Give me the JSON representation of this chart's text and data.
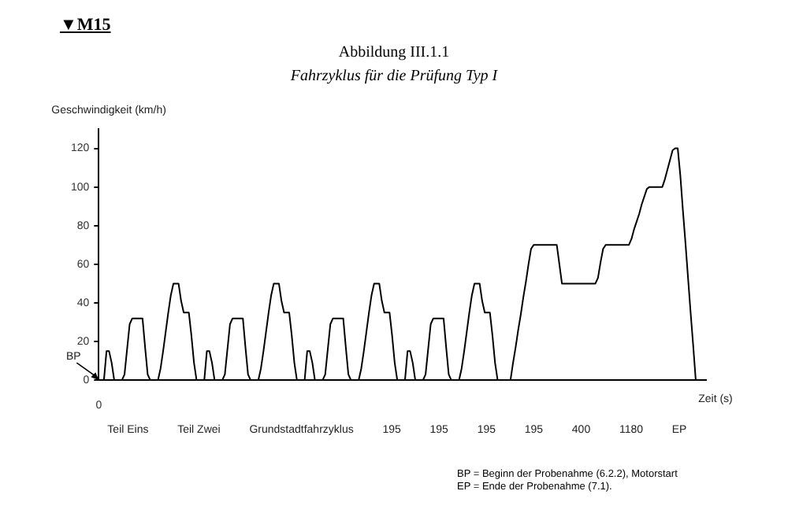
{
  "chart_data": {
    "type": "line",
    "title": "Abbildung III.1.1",
    "subtitle": "Fahrzyklus für die Prüfung Typ I",
    "ylabel": "Geschwindigkeit (km/h)",
    "xlabel": "Zeit (s)",
    "ylim": [
      0,
      130
    ],
    "yticks": [
      0,
      20,
      40,
      60,
      80,
      100,
      120
    ],
    "marker": "none",
    "legend": false,
    "categories": [
      "0",
      null,
      null,
      null,
      null,
      null,
      null,
      null,
      null,
      null,
      null,
      null,
      null,
      null,
      null,
      null,
      null,
      null,
      null,
      null,
      null,
      null,
      null,
      null,
      null,
      null,
      null,
      null,
      null,
      null,
      null,
      null,
      null,
      null,
      null,
      null,
      null,
      null,
      null,
      null,
      null,
      null,
      null,
      null,
      null,
      null,
      null,
      null,
      null,
      null,
      null,
      null,
      null,
      null,
      null,
      null,
      null,
      null,
      null,
      null,
      null,
      null,
      null,
      null,
      null,
      null,
      null,
      null,
      null,
      null,
      null,
      null,
      null,
      null,
      null,
      null,
      null,
      null,
      null,
      null,
      null,
      null,
      null,
      null,
      null,
      null,
      null,
      null,
      null,
      null,
      null,
      null,
      null,
      null,
      null,
      null,
      null,
      null,
      null,
      null,
      null,
      null,
      null,
      null,
      null,
      null,
      null,
      null,
      null,
      null,
      null,
      null,
      null,
      null,
      null,
      null,
      null,
      null,
      null,
      null,
      null,
      null,
      null,
      null,
      null,
      null,
      null,
      null,
      null,
      null,
      null,
      null,
      null,
      null,
      null,
      null,
      null,
      null,
      null,
      null,
      null,
      null,
      null,
      null,
      null,
      null,
      null,
      null,
      null,
      null,
      null,
      null,
      null,
      null,
      null,
      null,
      null,
      null,
      null,
      null,
      null,
      null,
      null,
      null,
      null,
      null,
      null,
      null,
      null,
      null,
      null,
      null,
      null,
      null,
      null,
      null,
      null,
      null,
      null,
      null,
      null,
      null,
      null,
      null,
      null,
      null,
      null,
      null,
      null,
      null,
      null,
      null,
      null,
      null,
      null,
      null,
      null,
      null,
      null,
      null,
      null,
      null,
      null,
      null,
      null,
      null,
      null,
      null,
      null,
      null,
      null,
      null,
      null,
      null,
      null,
      null,
      null,
      null,
      null,
      null,
      null,
      null,
      null,
      null,
      null,
      null,
      null,
      null,
      null,
      null,
      null,
      null,
      null,
      null,
      null,
      null,
      null
    ],
    "series": [
      {
        "color": "#000000",
        "values": [
          0,
          0,
          0,
          15,
          15,
          9,
          0,
          0,
          0,
          0,
          3,
          16,
          29,
          32,
          32,
          32,
          32,
          32,
          17,
          3,
          0,
          0,
          0,
          0,
          6,
          15,
          25,
          35,
          44,
          50,
          50,
          50,
          41,
          35,
          35,
          35,
          23,
          9,
          0,
          0,
          0,
          0,
          15,
          15,
          9,
          0,
          0,
          0,
          0,
          3,
          16,
          29,
          32,
          32,
          32,
          32,
          32,
          17,
          3,
          0,
          0,
          0,
          0,
          6,
          15,
          25,
          35,
          44,
          50,
          50,
          50,
          41,
          35,
          35,
          35,
          23,
          9,
          0,
          0,
          0,
          0,
          15,
          15,
          9,
          0,
          0,
          0,
          0,
          3,
          16,
          29,
          32,
          32,
          32,
          32,
          32,
          17,
          3,
          0,
          0,
          0,
          0,
          6,
          15,
          25,
          35,
          44,
          50,
          50,
          50,
          41,
          35,
          35,
          35,
          23,
          9,
          0,
          0,
          0,
          0,
          15,
          15,
          9,
          0,
          0,
          0,
          0,
          3,
          16,
          29,
          32,
          32,
          32,
          32,
          32,
          17,
          3,
          0,
          0,
          0,
          0,
          6,
          15,
          25,
          35,
          44,
          50,
          50,
          50,
          41,
          35,
          35,
          35,
          23,
          9,
          0,
          0,
          0,
          0,
          0,
          0,
          9,
          17,
          26,
          34,
          43,
          51,
          60,
          68,
          70,
          70,
          70,
          70,
          70,
          70,
          70,
          70,
          70,
          70,
          60,
          50,
          50,
          50,
          50,
          50,
          50,
          50,
          50,
          50,
          50,
          50,
          50,
          50,
          50,
          53,
          61,
          68,
          70,
          70,
          70,
          70,
          70,
          70,
          70,
          70,
          70,
          70,
          73,
          78,
          82,
          86,
          91,
          95,
          99,
          100,
          100,
          100,
          100,
          100,
          100,
          104,
          109,
          114,
          119,
          120,
          120,
          106,
          88,
          71,
          53,
          35,
          18,
          0,
          0,
          0,
          0,
          0
        ]
      }
    ],
    "annotations": [
      "▼M15",
      {
        "text": "BP",
        "x": "0",
        "y": 0
      },
      "Teil Eins",
      "Teil Zwei",
      "Grundstadtfahrzyklus",
      "195",
      "195",
      "195",
      "195",
      "400",
      "1180",
      "EP",
      "BP = Beginn der Probenahme (6.2.2), Motorstart",
      "EP = Ende der Probenahme (7.1)."
    ]
  }
}
